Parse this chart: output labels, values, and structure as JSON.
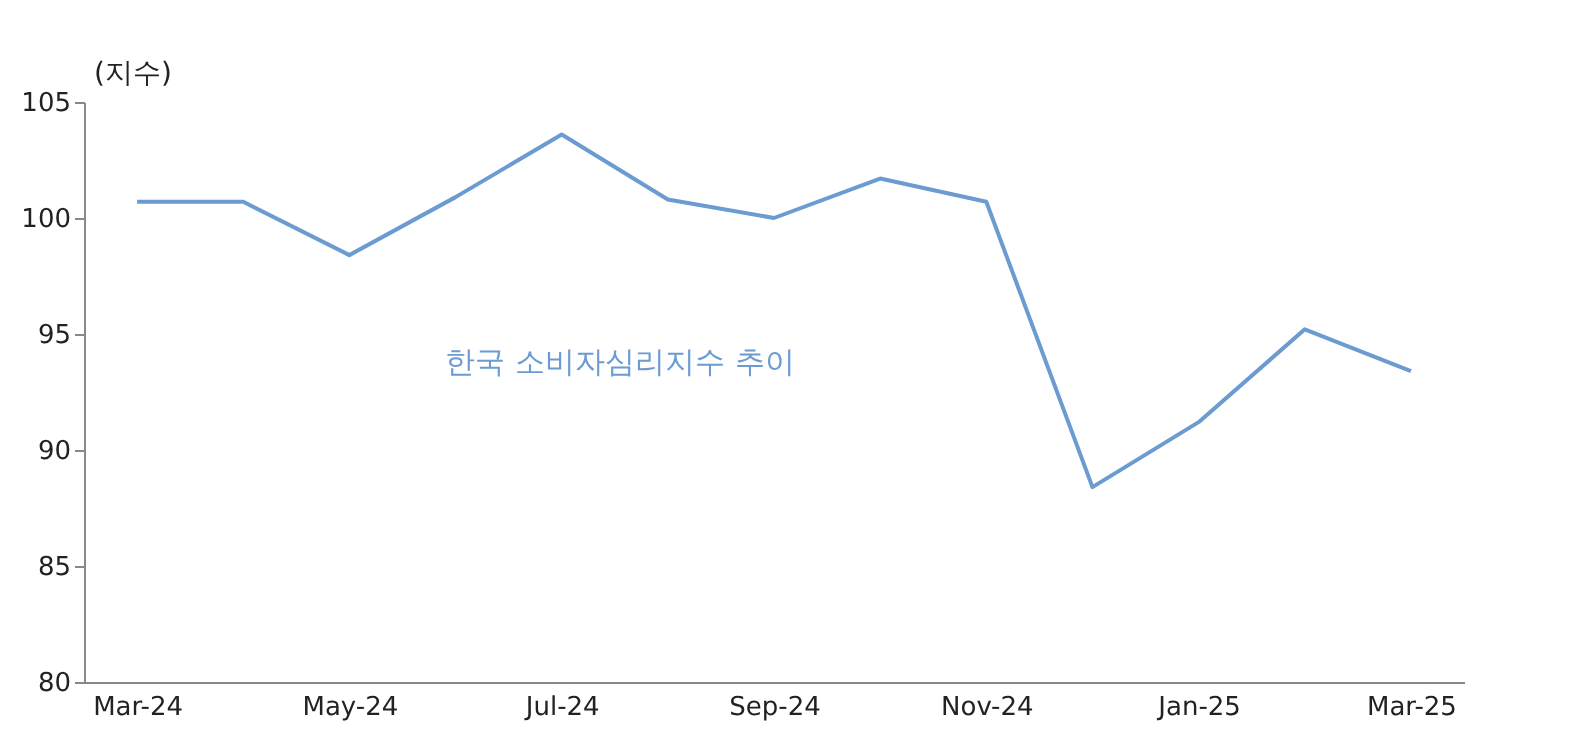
{
  "chart_data": {
    "type": "line",
    "ylabel": "(지수)",
    "categories": [
      "Mar-24",
      null,
      "May-24",
      null,
      "Jul-24",
      null,
      "Sep-24",
      null,
      "Nov-24",
      null,
      "Jan-25",
      null,
      "Mar-25"
    ],
    "series": [
      {
        "name": "한국 소비자심리지수 추이",
        "color": "#6b9bd1",
        "values": [
          100.7,
          100.7,
          98.4,
          100.9,
          103.6,
          100.8,
          100.0,
          101.7,
          100.7,
          88.4,
          91.2,
          95.2,
          93.4
        ]
      }
    ],
    "ylim": [
      80,
      105
    ],
    "yticks": [
      80,
      85,
      90,
      95,
      100,
      105
    ],
    "grid": false,
    "marker": "none",
    "line_style": "solid"
  }
}
